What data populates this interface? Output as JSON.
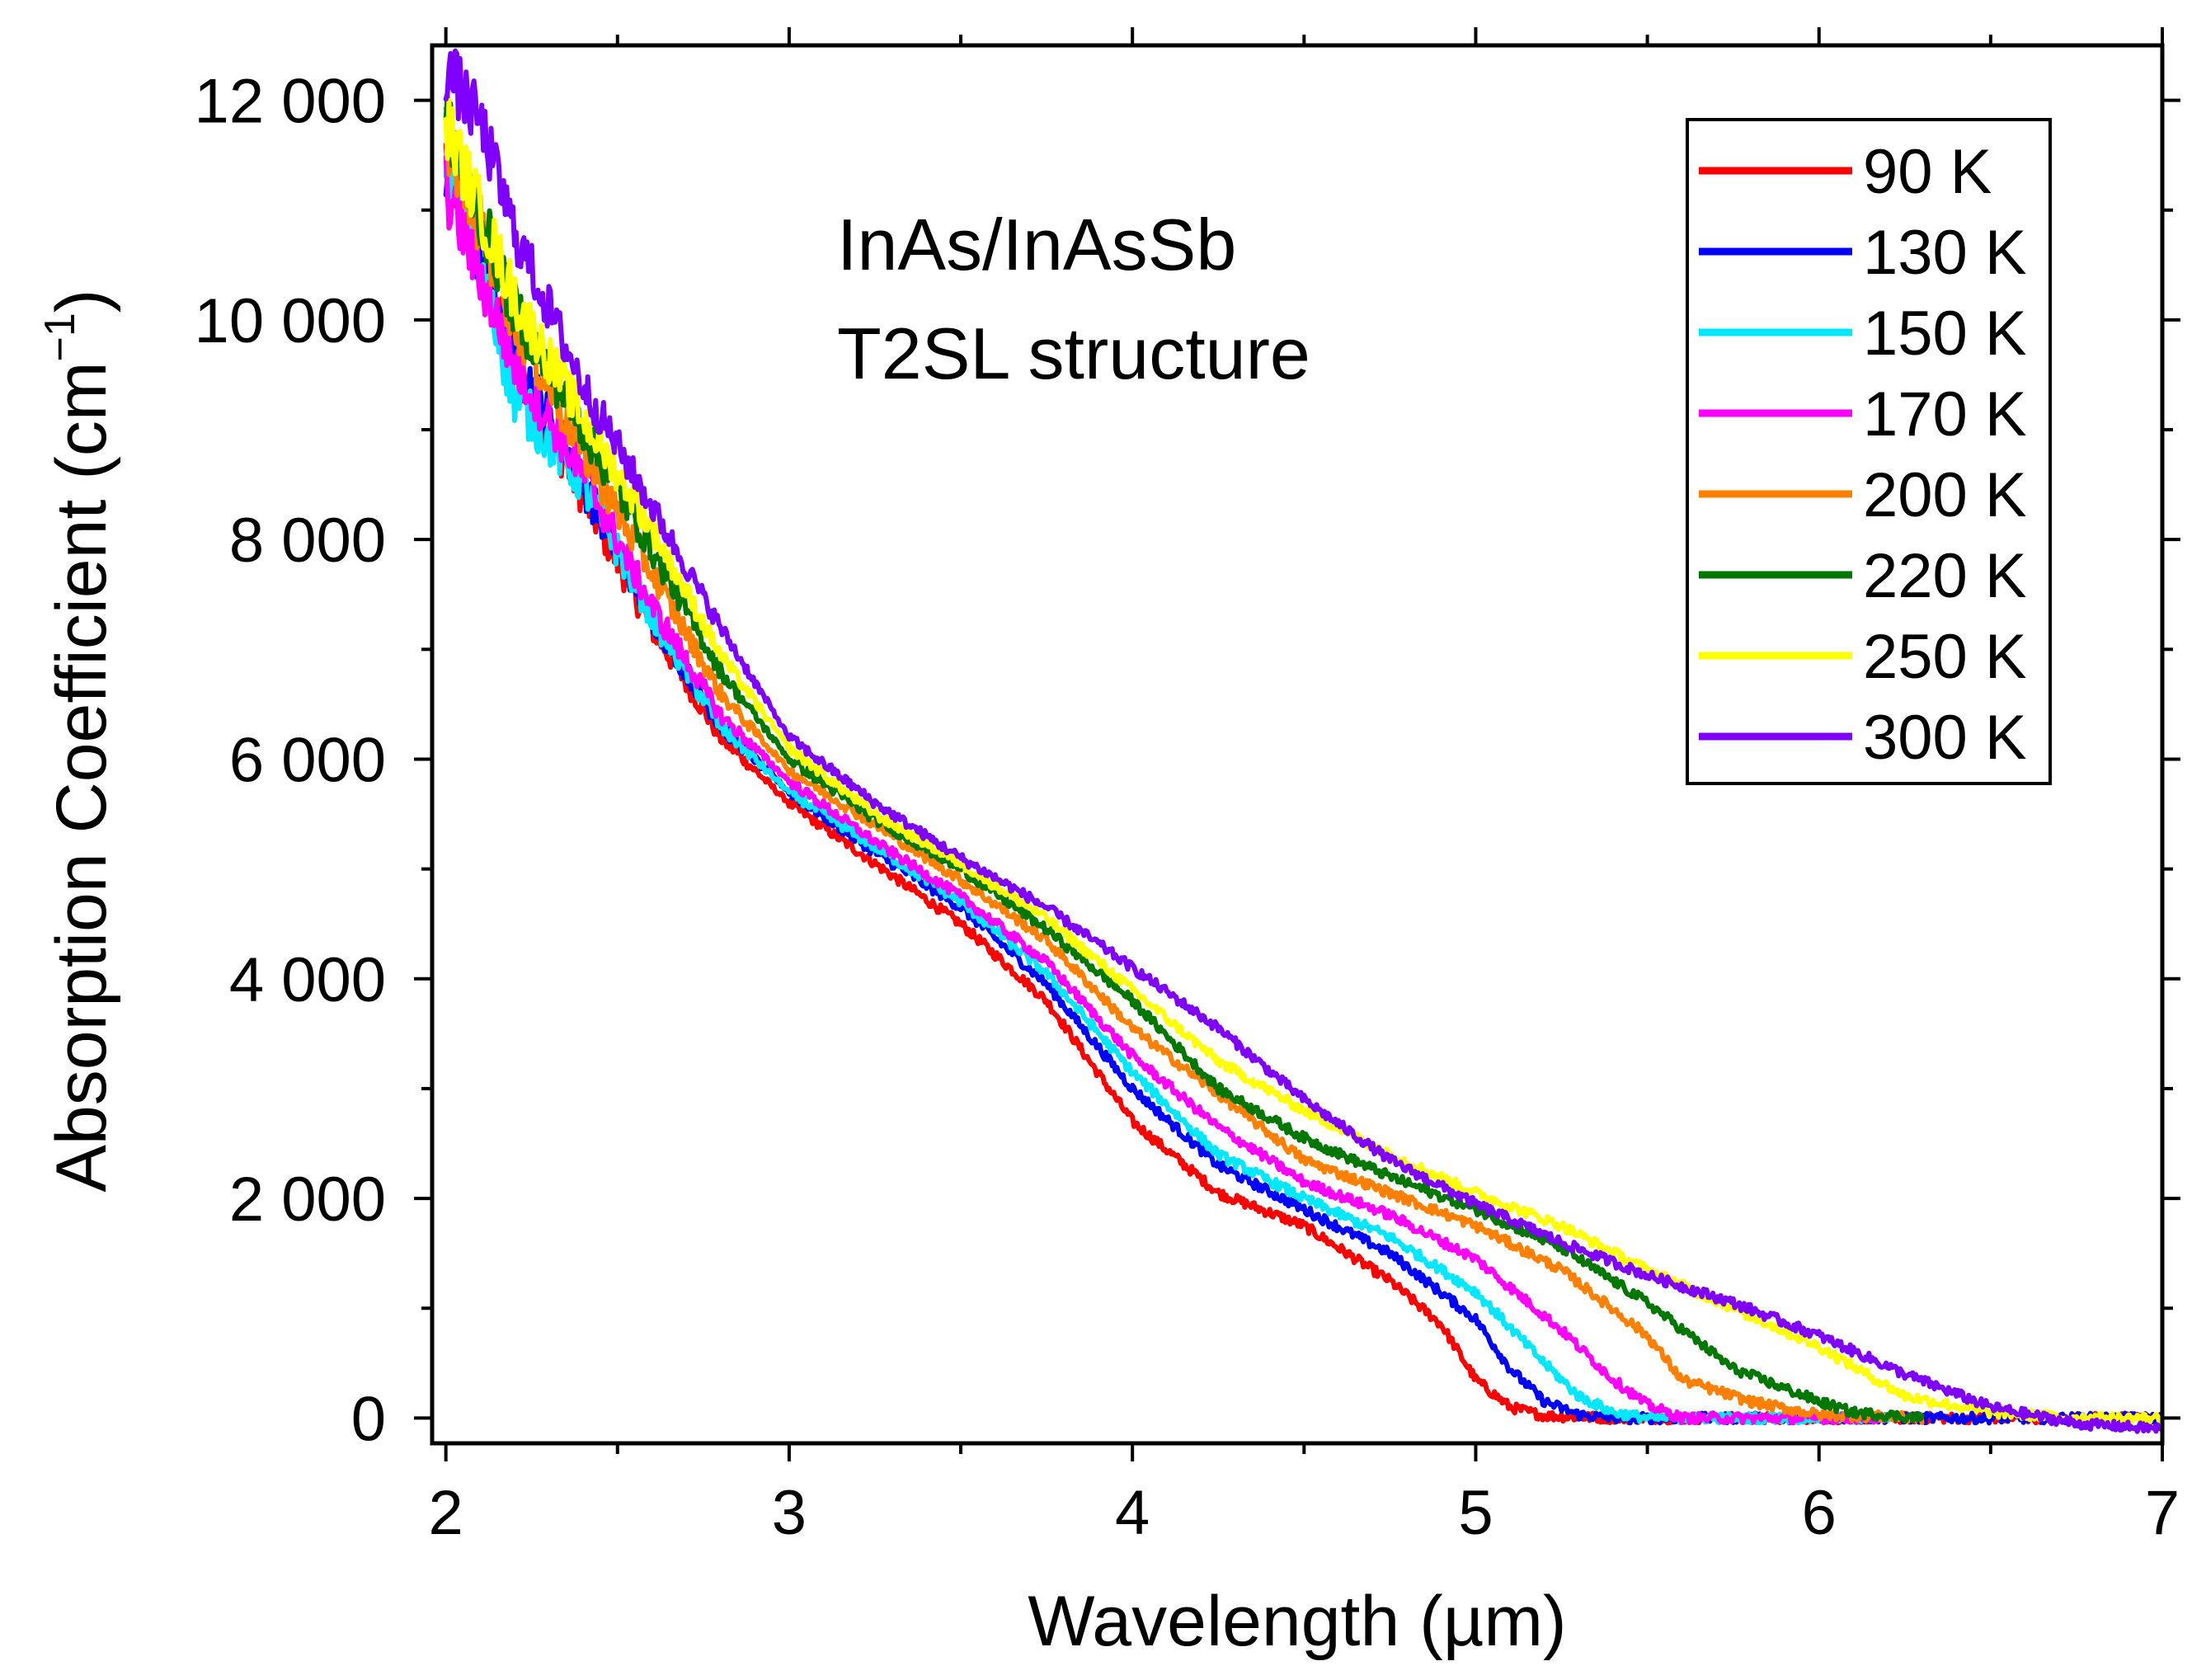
{
  "chart_data": {
    "type": "line",
    "xlabel": "Wavelength (µm)",
    "ylabel_main": "Absorption Coefficient (cm",
    "ylabel_sup": "−1",
    "ylabel_close": ")",
    "xlim": [
      1.96,
      7.0
    ],
    "ylim": [
      -230,
      12500
    ],
    "xticks": [
      2,
      3,
      4,
      5,
      6,
      7
    ],
    "xtick_labels": [
      "2",
      "3",
      "4",
      "5",
      "6",
      "7"
    ],
    "yticks": [
      0,
      2000,
      4000,
      6000,
      8000,
      10000,
      12000
    ],
    "ytick_labels": [
      "0",
      "2 000",
      "4 000",
      "6 000",
      "8 000",
      "10 000",
      "12 000"
    ],
    "annotation": [
      "InAs/InAsSb",
      "T2SL structure"
    ],
    "legend_position": "top-right",
    "grid": false,
    "series": [
      {
        "name": "90 K",
        "color": "#ff0000",
        "x": [
          2.0,
          2.2,
          2.4,
          2.6,
          2.8,
          3.0,
          3.25,
          3.5,
          3.75,
          4.0,
          4.25,
          4.5,
          4.75,
          4.9,
          5.0,
          5.1,
          5.2,
          5.4,
          6.0,
          7.0
        ],
        "y": [
          11500,
          9600,
          8400,
          7200,
          6200,
          5600,
          5050,
          4500,
          3800,
          2700,
          2050,
          1750,
          1250,
          850,
          350,
          100,
          20,
          0,
          0,
          0
        ]
      },
      {
        "name": "130 K",
        "color": "#0000ff",
        "x": [
          2.0,
          2.2,
          2.4,
          2.6,
          2.8,
          3.0,
          3.25,
          3.5,
          3.75,
          4.0,
          4.25,
          4.5,
          4.75,
          5.0,
          5.1,
          5.2,
          5.3,
          5.4,
          6.0,
          7.0
        ],
        "y": [
          11400,
          9700,
          8500,
          7300,
          6300,
          5700,
          5150,
          4650,
          3950,
          3000,
          2300,
          1900,
          1500,
          900,
          450,
          150,
          30,
          0,
          0,
          0
        ]
      },
      {
        "name": "150 K",
        "color": "#00e8ff",
        "x": [
          2.0,
          2.2,
          2.4,
          2.6,
          2.8,
          3.0,
          3.25,
          3.5,
          3.75,
          4.0,
          4.25,
          4.5,
          4.75,
          5.0,
          5.2,
          5.3,
          5.4,
          5.5,
          6.2
        ],
        "y": [
          11600,
          9300,
          8500,
          7300,
          6300,
          5700,
          5200,
          4700,
          4050,
          3150,
          2400,
          2000,
          1650,
          1150,
          500,
          200,
          50,
          0,
          0
        ]
      },
      {
        "name": "170 K",
        "color": "#ff00ff",
        "x": [
          2.0,
          2.2,
          2.4,
          2.6,
          2.8,
          3.0,
          3.25,
          3.5,
          3.75,
          4.0,
          4.25,
          4.5,
          4.75,
          5.0,
          5.25,
          5.4,
          5.5,
          5.6,
          6.2
        ],
        "y": [
          11200,
          9600,
          8600,
          7400,
          6400,
          5800,
          5250,
          4750,
          4150,
          3300,
          2650,
          2150,
          1850,
          1450,
          800,
          350,
          120,
          0,
          0
        ]
      },
      {
        "name": "200 K",
        "color": "#ff8000",
        "x": [
          2.0,
          2.2,
          2.4,
          2.6,
          2.8,
          3.0,
          3.25,
          3.5,
          3.75,
          4.0,
          4.25,
          4.5,
          4.75,
          5.0,
          5.25,
          5.5,
          5.6,
          5.8,
          6.0,
          6.3
        ],
        "y": [
          11700,
          10000,
          8800,
          7700,
          6600,
          5900,
          5400,
          4900,
          4350,
          3550,
          2950,
          2350,
          2050,
          1750,
          1350,
          750,
          350,
          150,
          30,
          0
        ]
      },
      {
        "name": "220 K",
        "color": "#007800",
        "x": [
          2.0,
          2.2,
          2.4,
          2.6,
          2.8,
          3.0,
          3.25,
          3.5,
          3.75,
          4.0,
          4.25,
          4.5,
          4.75,
          5.0,
          5.25,
          5.5,
          5.75,
          6.0,
          6.1,
          6.3
        ],
        "y": [
          11800,
          10100,
          9000,
          7900,
          6800,
          6000,
          5450,
          5000,
          4450,
          3800,
          3000,
          2550,
          2200,
          1900,
          1550,
          1050,
          450,
          150,
          50,
          0
        ]
      },
      {
        "name": "250 K",
        "color": "#ffff00",
        "x": [
          2.0,
          2.2,
          2.4,
          2.6,
          2.8,
          3.0,
          3.25,
          3.5,
          3.75,
          4.0,
          4.25,
          4.5,
          4.75,
          5.0,
          5.25,
          5.5,
          5.75,
          6.0,
          6.25,
          6.5,
          6.75,
          7.0
        ],
        "y": [
          11800,
          10200,
          9100,
          8100,
          6950,
          6100,
          5500,
          5050,
          4550,
          3900,
          3250,
          2800,
          2400,
          2050,
          1750,
          1350,
          1000,
          650,
          200,
          50,
          0,
          0
        ]
      },
      {
        "name": "300 K",
        "color": "#8000ff",
        "x": [
          2.0,
          2.1,
          2.2,
          2.4,
          2.6,
          2.8,
          3.0,
          3.25,
          3.5,
          3.75,
          4.0,
          4.25,
          4.5,
          4.75,
          5.0,
          5.25,
          5.5,
          5.75,
          6.0,
          6.25,
          6.5,
          6.75,
          7.0
        ],
        "y": [
          12300,
          11800,
          10800,
          9400,
          8300,
          7200,
          6200,
          5600,
          5100,
          4650,
          4100,
          3550,
          2900,
          2350,
          1950,
          1600,
          1300,
          1050,
          750,
          400,
          100,
          -50,
          -100
        ]
      }
    ]
  }
}
